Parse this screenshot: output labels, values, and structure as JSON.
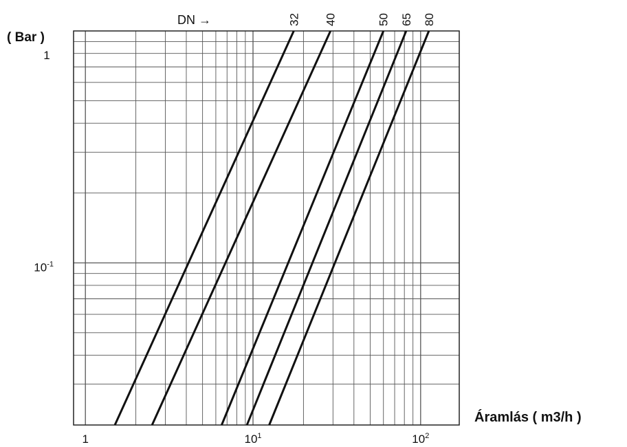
{
  "chart_data": {
    "type": "line",
    "title": "",
    "ylabel": "( Bar )",
    "xlabel": "Áramlás ( m3/h )",
    "x_scale": "log",
    "y_scale": "log",
    "xlim": [
      0.85,
      170
    ],
    "ylim": [
      0.02,
      1
    ],
    "x_ticks": [
      {
        "value": 1,
        "label": "1"
      },
      {
        "value": 10,
        "base": "10",
        "exp": "1"
      },
      {
        "value": 100,
        "base": "10",
        "exp": "2"
      }
    ],
    "y_ticks": [
      {
        "value": 1,
        "label": "1"
      },
      {
        "value": 0.1,
        "base": "10",
        "exp": "-1"
      }
    ],
    "dn_label": "DN →",
    "grid": true,
    "series": [
      {
        "name": "32",
        "x": [
          1.5,
          17.5
        ],
        "y": [
          0.02,
          1
        ]
      },
      {
        "name": "40",
        "x": [
          2.5,
          29
        ],
        "y": [
          0.02,
          1
        ]
      },
      {
        "name": "50",
        "x": [
          6.5,
          60
        ],
        "y": [
          0.02,
          1
        ]
      },
      {
        "name": "65",
        "x": [
          9.2,
          82
        ],
        "y": [
          0.02,
          1
        ]
      },
      {
        "name": "80",
        "x": [
          12.5,
          112
        ],
        "y": [
          0.02,
          1
        ]
      }
    ],
    "line_color": "#111111",
    "grid_color": "#555555"
  }
}
